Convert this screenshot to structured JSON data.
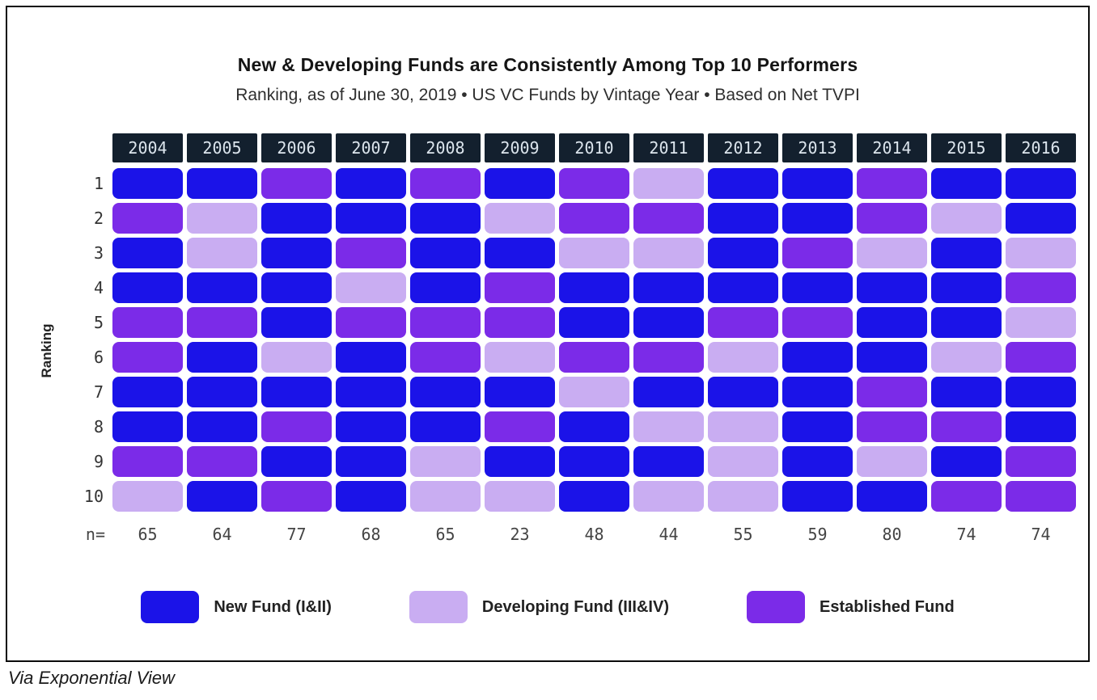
{
  "footer": "Via Exponential View",
  "colors": {
    "new_fund": "#1b13e8",
    "developing_fund": "#c9adf2",
    "established_fund": "#7b2be8",
    "header_bg": "#13202e",
    "header_text": "#dce5ed",
    "frame_border": "#0b0b0b"
  },
  "legend": [
    {
      "code": "N",
      "label": "New Fund (I&II)",
      "color": "new_fund"
    },
    {
      "code": "D",
      "label": "Developing Fund (III&IV)",
      "color": "developing_fund"
    },
    {
      "code": "E",
      "label": "Established Fund",
      "color": "established_fund"
    }
  ],
  "chart_data": {
    "type": "heatmap",
    "title": "New & Developing Funds are Consistently Among Top 10 Performers",
    "subtitle": "Ranking, as of June 30, 2019 • US VC Funds by Vintage Year • Based on Net TVPI",
    "row_axis_label": "Ranking",
    "columns": [
      "2004",
      "2005",
      "2006",
      "2007",
      "2008",
      "2009",
      "2010",
      "2011",
      "2012",
      "2013",
      "2014",
      "2015",
      "2016"
    ],
    "rows": [
      "1",
      "2",
      "3",
      "4",
      "5",
      "6",
      "7",
      "8",
      "9",
      "10"
    ],
    "n_label": "n=",
    "n_values": [
      65,
      64,
      77,
      68,
      65,
      23,
      48,
      44,
      55,
      59,
      80,
      74,
      74
    ],
    "cell_legend": {
      "N": "New Fund (I&II)",
      "D": "Developing Fund (III&IV)",
      "E": "Established Fund"
    },
    "cells": [
      [
        "N",
        "N",
        "E",
        "N",
        "E",
        "N",
        "E",
        "D",
        "N",
        "N",
        "E",
        "N",
        "N"
      ],
      [
        "E",
        "D",
        "N",
        "N",
        "N",
        "D",
        "E",
        "E",
        "N",
        "N",
        "E",
        "D",
        "N"
      ],
      [
        "N",
        "D",
        "N",
        "E",
        "N",
        "N",
        "D",
        "D",
        "N",
        "E",
        "D",
        "N",
        "D"
      ],
      [
        "N",
        "N",
        "N",
        "D",
        "N",
        "E",
        "N",
        "N",
        "N",
        "N",
        "N",
        "N",
        "E"
      ],
      [
        "E",
        "E",
        "N",
        "E",
        "E",
        "E",
        "N",
        "N",
        "E",
        "E",
        "N",
        "N",
        "D"
      ],
      [
        "E",
        "N",
        "D",
        "N",
        "E",
        "D",
        "E",
        "E",
        "D",
        "N",
        "N",
        "D",
        "E"
      ],
      [
        "N",
        "N",
        "N",
        "N",
        "N",
        "N",
        "D",
        "N",
        "N",
        "N",
        "E",
        "N",
        "N"
      ],
      [
        "N",
        "N",
        "E",
        "N",
        "N",
        "E",
        "N",
        "D",
        "D",
        "N",
        "E",
        "E",
        "N"
      ],
      [
        "E",
        "E",
        "N",
        "N",
        "D",
        "N",
        "N",
        "N",
        "D",
        "N",
        "D",
        "N",
        "E"
      ],
      [
        "D",
        "N",
        "E",
        "N",
        "D",
        "D",
        "N",
        "D",
        "D",
        "N",
        "N",
        "E",
        "E"
      ]
    ]
  }
}
